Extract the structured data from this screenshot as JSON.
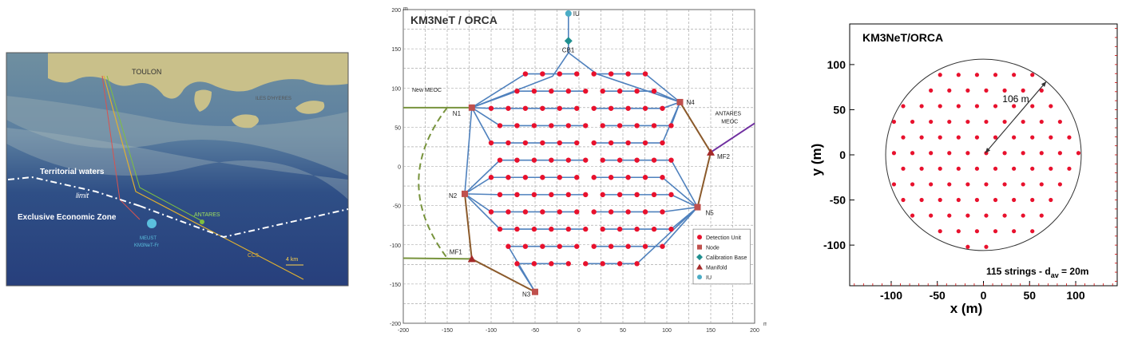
{
  "map": {
    "label_toulon": "TOULON",
    "label_sea_name": "ILES D'HYERES",
    "label_territorial": "Territorial waters",
    "label_limit": "limit",
    "label_eez": "Exclusive Economic Zone",
    "label_antares": "ANTARES",
    "label_meust": "MEUST",
    "label_km3netfr": "KM3NeT-Fr",
    "label_cc5": "CC5",
    "label_scale": "4 km"
  },
  "layout": {
    "title": "KM3NeT / ORCA",
    "axis_unit_x": "m",
    "axis_unit_y": "m",
    "x_ticks": [
      -200,
      -150,
      -100,
      -50,
      0,
      50,
      100,
      150,
      200
    ],
    "y_ticks": [
      200,
      150,
      100,
      50,
      0,
      -50,
      -100,
      -150,
      -200
    ],
    "labels": {
      "iu": "IU",
      "cb1": "CB1",
      "new_meoc": "New MEOC",
      "antares_meoc_1": "ANTARES",
      "antares_meoc_2": "MEOC",
      "n1": "N1",
      "n2": "N2",
      "n3": "N3",
      "n4": "N4",
      "n5": "N5",
      "mf1": "MF1",
      "mf2": "MF2"
    },
    "legend": [
      "Detection Unit",
      "Node",
      "Calibration Base",
      "Manifold",
      "IU"
    ],
    "colors": {
      "du": "#e8112d",
      "node": "#c0504d",
      "cable": "#4f81bd",
      "green": "#77933c",
      "brown": "#8b5a2b",
      "purple": "#7030a0",
      "teal": "#1f8f8f",
      "iu": "#4bacc6"
    }
  },
  "chart_data": {
    "type": "scatter",
    "title": "KM3NeT/ORCA",
    "xlabel": "x (m)",
    "ylabel": "y (m)",
    "xlim": [
      -145,
      145
    ],
    "ylim": [
      -145,
      145
    ],
    "x_ticks": [
      -100,
      -50,
      0,
      50,
      100
    ],
    "y_ticks": [
      100,
      50,
      0,
      -50,
      -100
    ],
    "radius_label": "106 m",
    "radius": 106,
    "annotation": "115 strings - d",
    "annotation_sub": "av",
    "annotation_tail": " = 20m",
    "spacing": 20,
    "count": 115
  }
}
